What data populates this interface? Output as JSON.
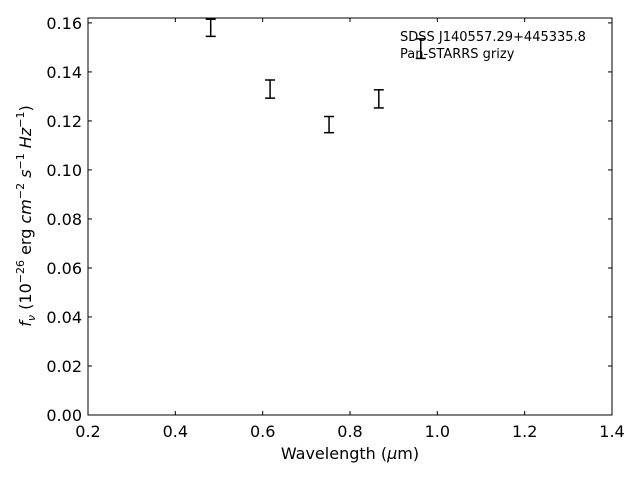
{
  "chart_data": {
    "type": "scatter",
    "xlabel": "Wavelength (μm)",
    "ylabel": "f_ν (10^-26 erg cm^-2 s^-1 Hz^-1)",
    "xlim": [
      0.2,
      1.4
    ],
    "ylim": [
      0.0,
      0.162
    ],
    "xticks": [
      0.2,
      0.4,
      0.6,
      0.8,
      1.0,
      1.2,
      1.4
    ],
    "xtick_labels": [
      "0.2",
      "0.4",
      "0.6",
      "0.8",
      "1.0",
      "1.2",
      "1.4"
    ],
    "yticks": [
      0.0,
      0.02,
      0.04,
      0.06,
      0.08,
      0.1,
      0.12,
      0.14,
      0.16
    ],
    "ytick_labels": [
      "0.00",
      "0.02",
      "0.04",
      "0.06",
      "0.08",
      "0.10",
      "0.12",
      "0.14",
      "0.16"
    ],
    "grid": false,
    "annotation": {
      "line1": "SDSS J140557.29+445335.8",
      "line2": "Pan-STARRS grizy"
    },
    "series": [
      {
        "x": [
          0.481,
          0.617,
          0.752,
          0.866,
          0.962
        ],
        "y": [
          0.158,
          0.133,
          0.1185,
          0.129,
          0.1495
        ],
        "yerr": [
          0.0035,
          0.0037,
          0.0033,
          0.0037,
          0.004
        ],
        "marker": "errorbar-only",
        "color": "#000000"
      }
    ]
  }
}
